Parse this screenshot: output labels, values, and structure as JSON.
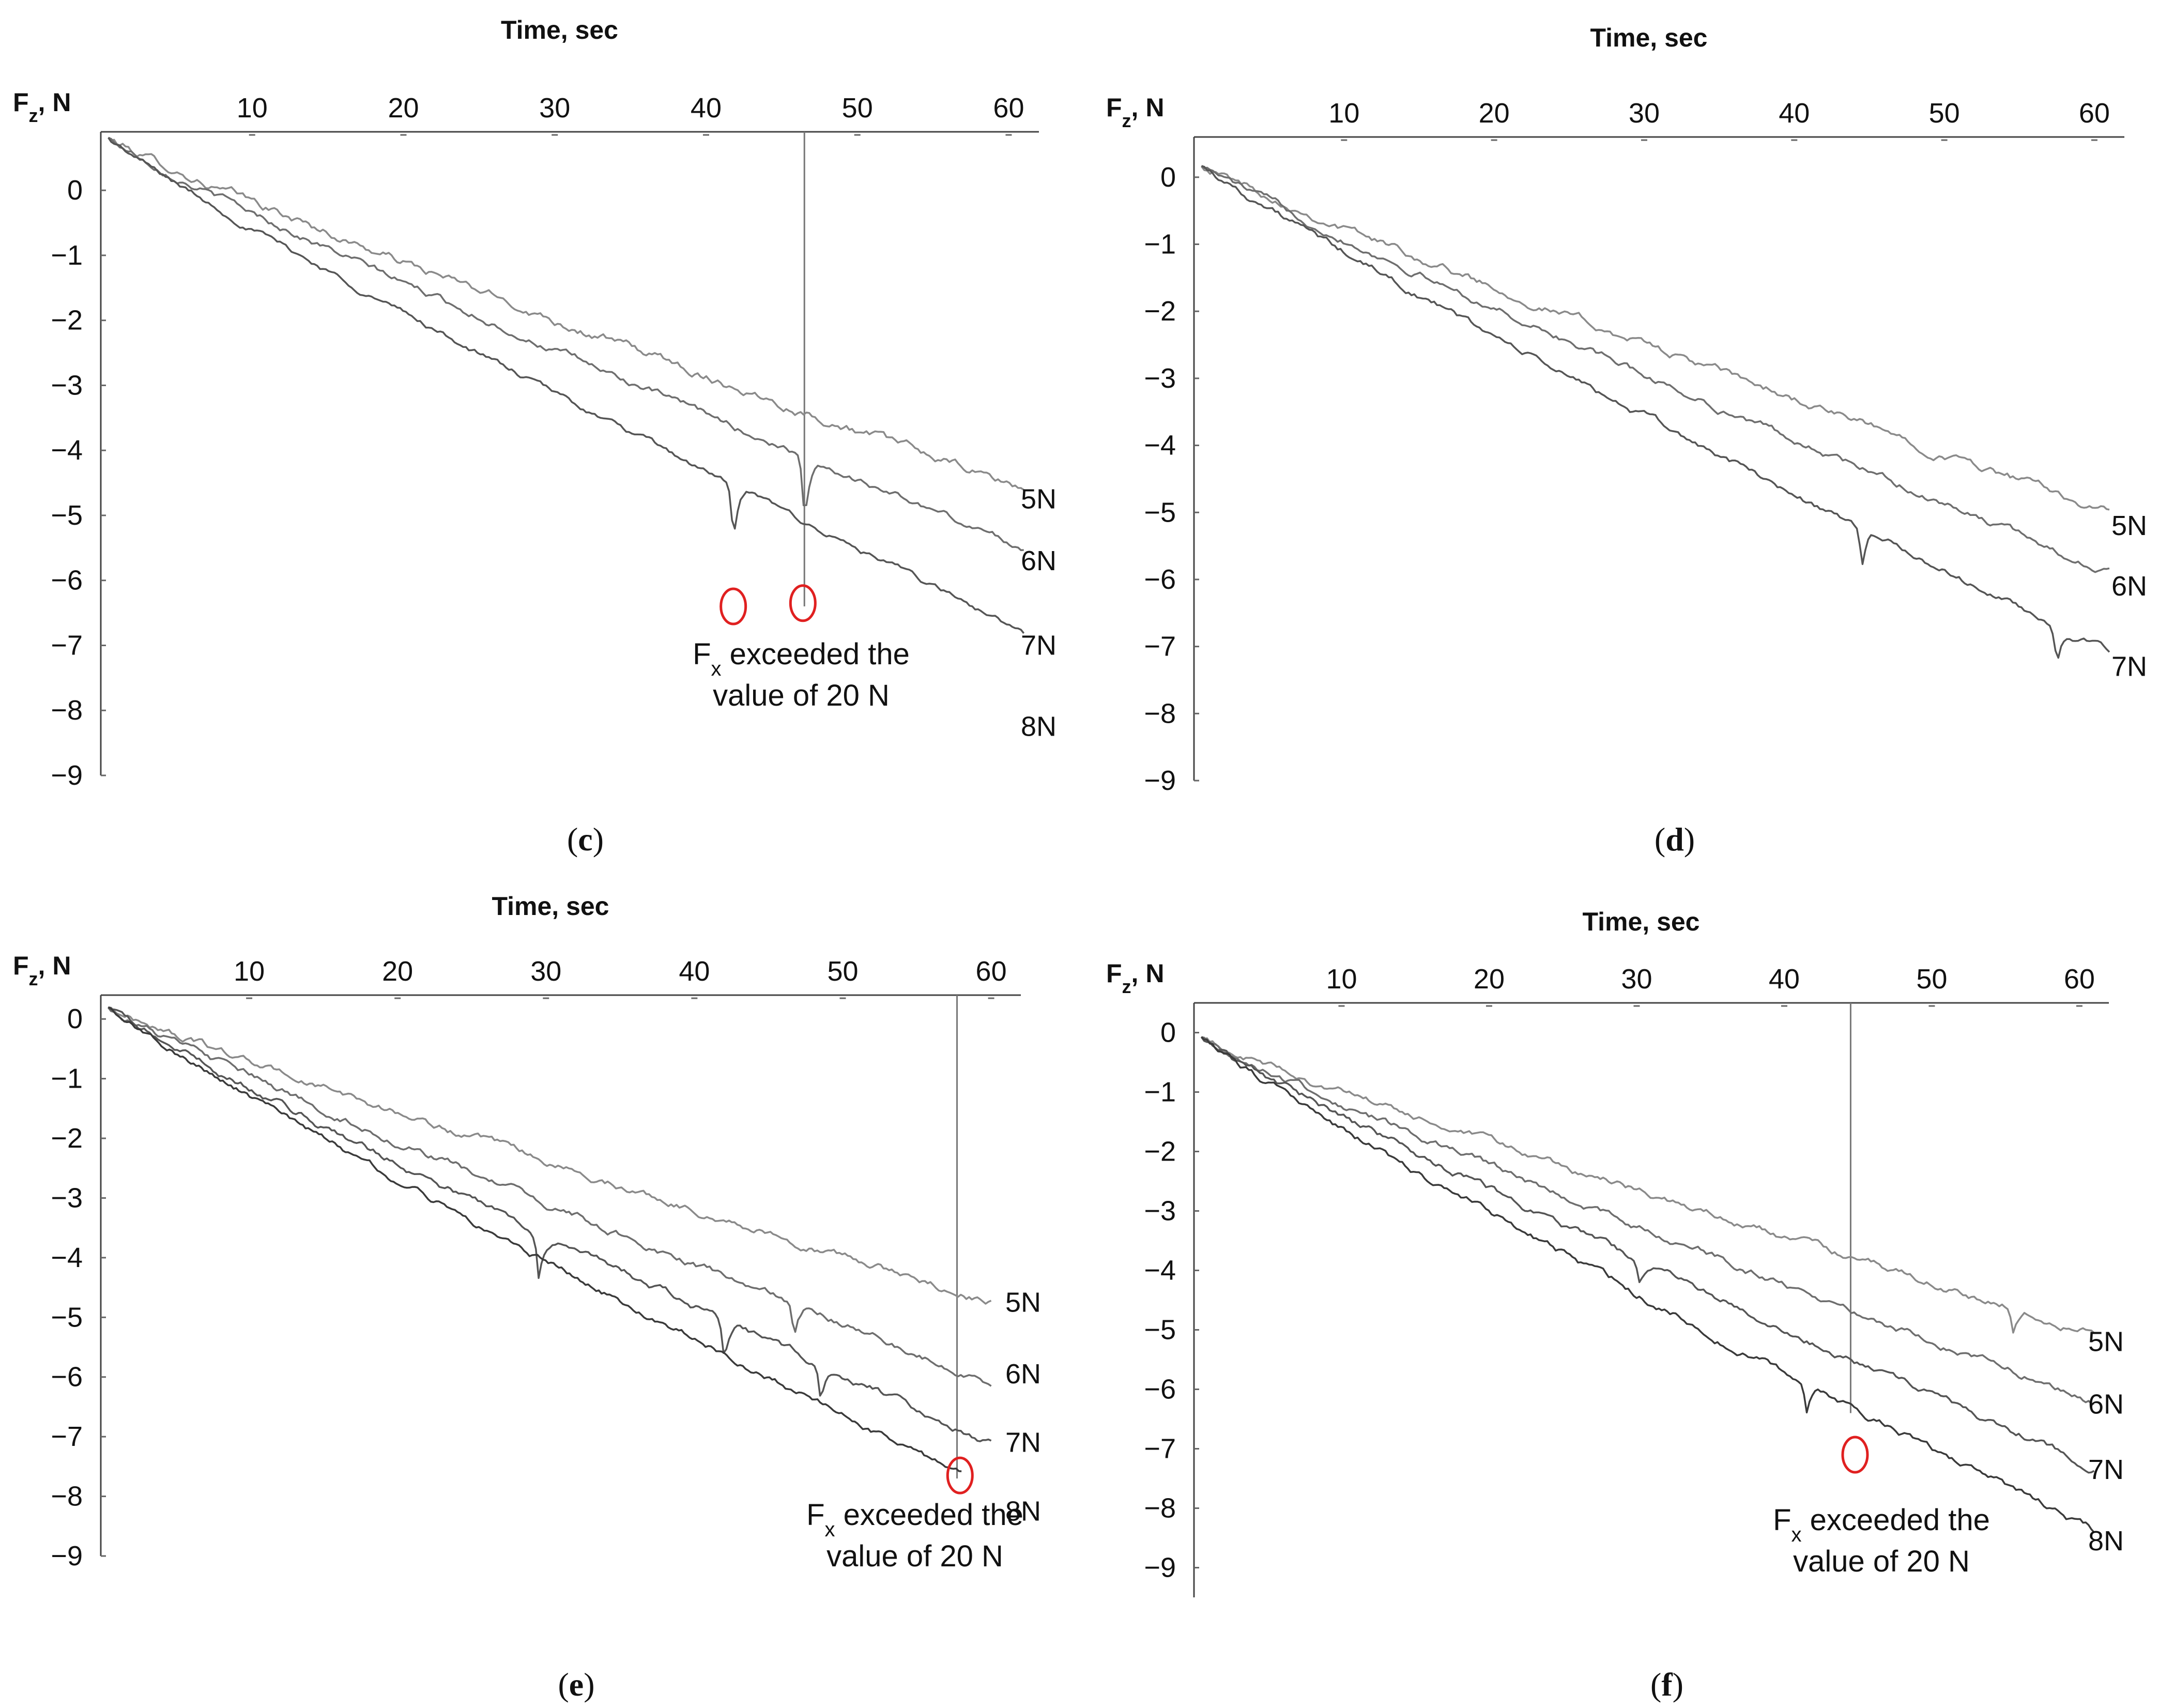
{
  "chart_data": [
    {
      "type": "line",
      "panel": "c",
      "caption": {
        "open": "(",
        "letter": "c",
        "close": ")"
      },
      "xlabel": "Time, sec",
      "ylabel": "F_z, N",
      "xlim": [
        0,
        62
      ],
      "ylim": [
        -9,
        0.9
      ],
      "x_ticks": [
        10,
        20,
        30,
        40,
        50,
        60
      ],
      "y_ticks": [
        0,
        -1,
        -2,
        -3,
        -4,
        -5,
        -6,
        -7,
        -8,
        -9
      ],
      "series": [
        {
          "name": "5N",
          "label_y": -4.75,
          "start": 0.8,
          "end_x": 61,
          "end": -4.6,
          "noise": 0.09,
          "dips": []
        },
        {
          "name": "6N",
          "label_y": -5.7,
          "start": 0.8,
          "end_x": 61,
          "end": -5.5,
          "noise": 0.07,
          "dips": [
            {
              "x": 46.5,
              "depth": 1.0
            }
          ]
        },
        {
          "name": "7N",
          "label_y": -7.0,
          "start": 0.8,
          "end_x": 61,
          "end": -6.8,
          "noise": 0.06,
          "dips": [
            {
              "x": 41.8,
              "depth": 0.9
            }
          ]
        }
      ],
      "extra_labels": [
        {
          "text": "8N",
          "y": -8.25
        }
      ],
      "threshold_markers": [
        {
          "x": 46.5
        }
      ],
      "highlight_points": [
        {
          "x": 41.8,
          "y": -6.4
        },
        {
          "x": 46.4,
          "y": -6.35
        }
      ],
      "annotation": {
        "line1_main": "F",
        "line1_sub": "x",
        "line1_rest": " exceeded the",
        "line2": "value of 20 N"
      }
    },
    {
      "type": "line",
      "panel": "d",
      "caption": {
        "open": "(",
        "letter": "d",
        "close": ")"
      },
      "xlabel": "Time, sec",
      "ylabel": "F_z, N",
      "xlim": [
        0,
        62
      ],
      "ylim": [
        -9,
        0.6
      ],
      "x_ticks": [
        10,
        20,
        30,
        40,
        50,
        60
      ],
      "y_ticks": [
        0,
        -1,
        -2,
        -3,
        -4,
        -5,
        -6,
        -7,
        -8,
        -9
      ],
      "series": [
        {
          "name": "5N",
          "label_y": -5.2,
          "start": 0.2,
          "end_x": 61,
          "end": -5.0,
          "noise": 0.08,
          "dips": []
        },
        {
          "name": "6N",
          "label_y": -6.1,
          "start": 0.2,
          "end_x": 61,
          "end": -5.9,
          "noise": 0.07,
          "dips": []
        },
        {
          "name": "7N",
          "label_y": -7.3,
          "start": 0.2,
          "end_x": 61,
          "end": -7.1,
          "noise": 0.07,
          "dips": [
            {
              "x": 44.5,
              "depth": 0.6
            },
            {
              "x": 57.5,
              "depth": 0.5
            }
          ]
        }
      ],
      "extra_labels": [],
      "threshold_markers": [],
      "highlight_points": [],
      "annotation": null
    },
    {
      "type": "line",
      "panel": "e",
      "caption": {
        "open": "(",
        "letter": "e",
        "close": ")"
      },
      "xlabel": "Time, sec",
      "ylabel": "F_z, N",
      "xlim": [
        0,
        62
      ],
      "ylim": [
        -9,
        0.4
      ],
      "x_ticks": [
        10,
        20,
        30,
        40,
        50,
        60
      ],
      "y_ticks": [
        0,
        -1,
        -2,
        -3,
        -4,
        -5,
        -6,
        -7,
        -8,
        -9
      ],
      "series": [
        {
          "name": "5N",
          "label_y": -4.75,
          "start": 0.2,
          "end_x": 60,
          "end": -4.75,
          "noise": 0.08,
          "dips": []
        },
        {
          "name": "6N",
          "label_y": -5.95,
          "start": 0.2,
          "end_x": 60,
          "end": -6.1,
          "noise": 0.08,
          "dips": [
            {
              "x": 46.7,
              "depth": 0.6
            }
          ]
        },
        {
          "name": "7N",
          "label_y": -7.1,
          "start": 0.2,
          "end_x": 60,
          "end": -7.1,
          "noise": 0.08,
          "dips": [
            {
              "x": 29.5,
              "depth": 0.7
            },
            {
              "x": 42.0,
              "depth": 0.7
            },
            {
              "x": 48.5,
              "depth": 0.6
            }
          ]
        },
        {
          "name": "8N",
          "label_y": -8.25,
          "start": 0.2,
          "end_x": 58,
          "end": -7.65,
          "noise": 0.07,
          "dips": []
        }
      ],
      "extra_labels": [],
      "threshold_markers": [
        {
          "x": 57.7
        }
      ],
      "highlight_points": [
        {
          "x": 57.9,
          "y": -7.65
        }
      ],
      "annotation": {
        "line1_main": "F",
        "line1_sub": "x",
        "line1_rest": " exceeded the",
        "line2": "value of 20 N"
      }
    },
    {
      "type": "line",
      "panel": "f",
      "caption": {
        "open": "(",
        "letter": "f",
        "close": ")"
      },
      "xlabel": "Time, sec",
      "ylabel": "F_z, N",
      "xlim": [
        0,
        62
      ],
      "ylim": [
        -9.5,
        0.5
      ],
      "x_ticks": [
        10,
        20,
        30,
        40,
        50,
        60
      ],
      "y_ticks": [
        0,
        -1,
        -2,
        -3,
        -4,
        -5,
        -6,
        -7,
        -8,
        -9
      ],
      "series": [
        {
          "name": "5N",
          "label_y": -5.2,
          "start": -0.1,
          "end_x": 61,
          "end": -5.05,
          "noise": 0.08,
          "dips": [
            {
              "x": 55.5,
              "depth": 0.45
            }
          ]
        },
        {
          "name": "6N",
          "label_y": -6.25,
          "start": -0.1,
          "end_x": 61,
          "end": -6.2,
          "noise": 0.08,
          "dips": []
        },
        {
          "name": "7N",
          "label_y": -7.35,
          "start": -0.1,
          "end_x": 61,
          "end": -7.3,
          "noise": 0.08,
          "dips": [
            {
              "x": 30.2,
              "depth": 0.4
            }
          ]
        },
        {
          "name": "8N",
          "label_y": -8.55,
          "start": -0.1,
          "end_x": 61,
          "end": -8.4,
          "noise": 0.08,
          "dips": [
            {
              "x": 41.5,
              "depth": 0.5
            }
          ]
        }
      ],
      "extra_labels": [],
      "threshold_markers": [
        {
          "x": 44.5
        }
      ],
      "highlight_points": [
        {
          "x": 44.8,
          "y": -7.1
        }
      ],
      "annotation": {
        "line1_main": "F",
        "line1_sub": "x",
        "line1_rest": " exceeded the",
        "line2": "value of 20 N"
      }
    }
  ]
}
